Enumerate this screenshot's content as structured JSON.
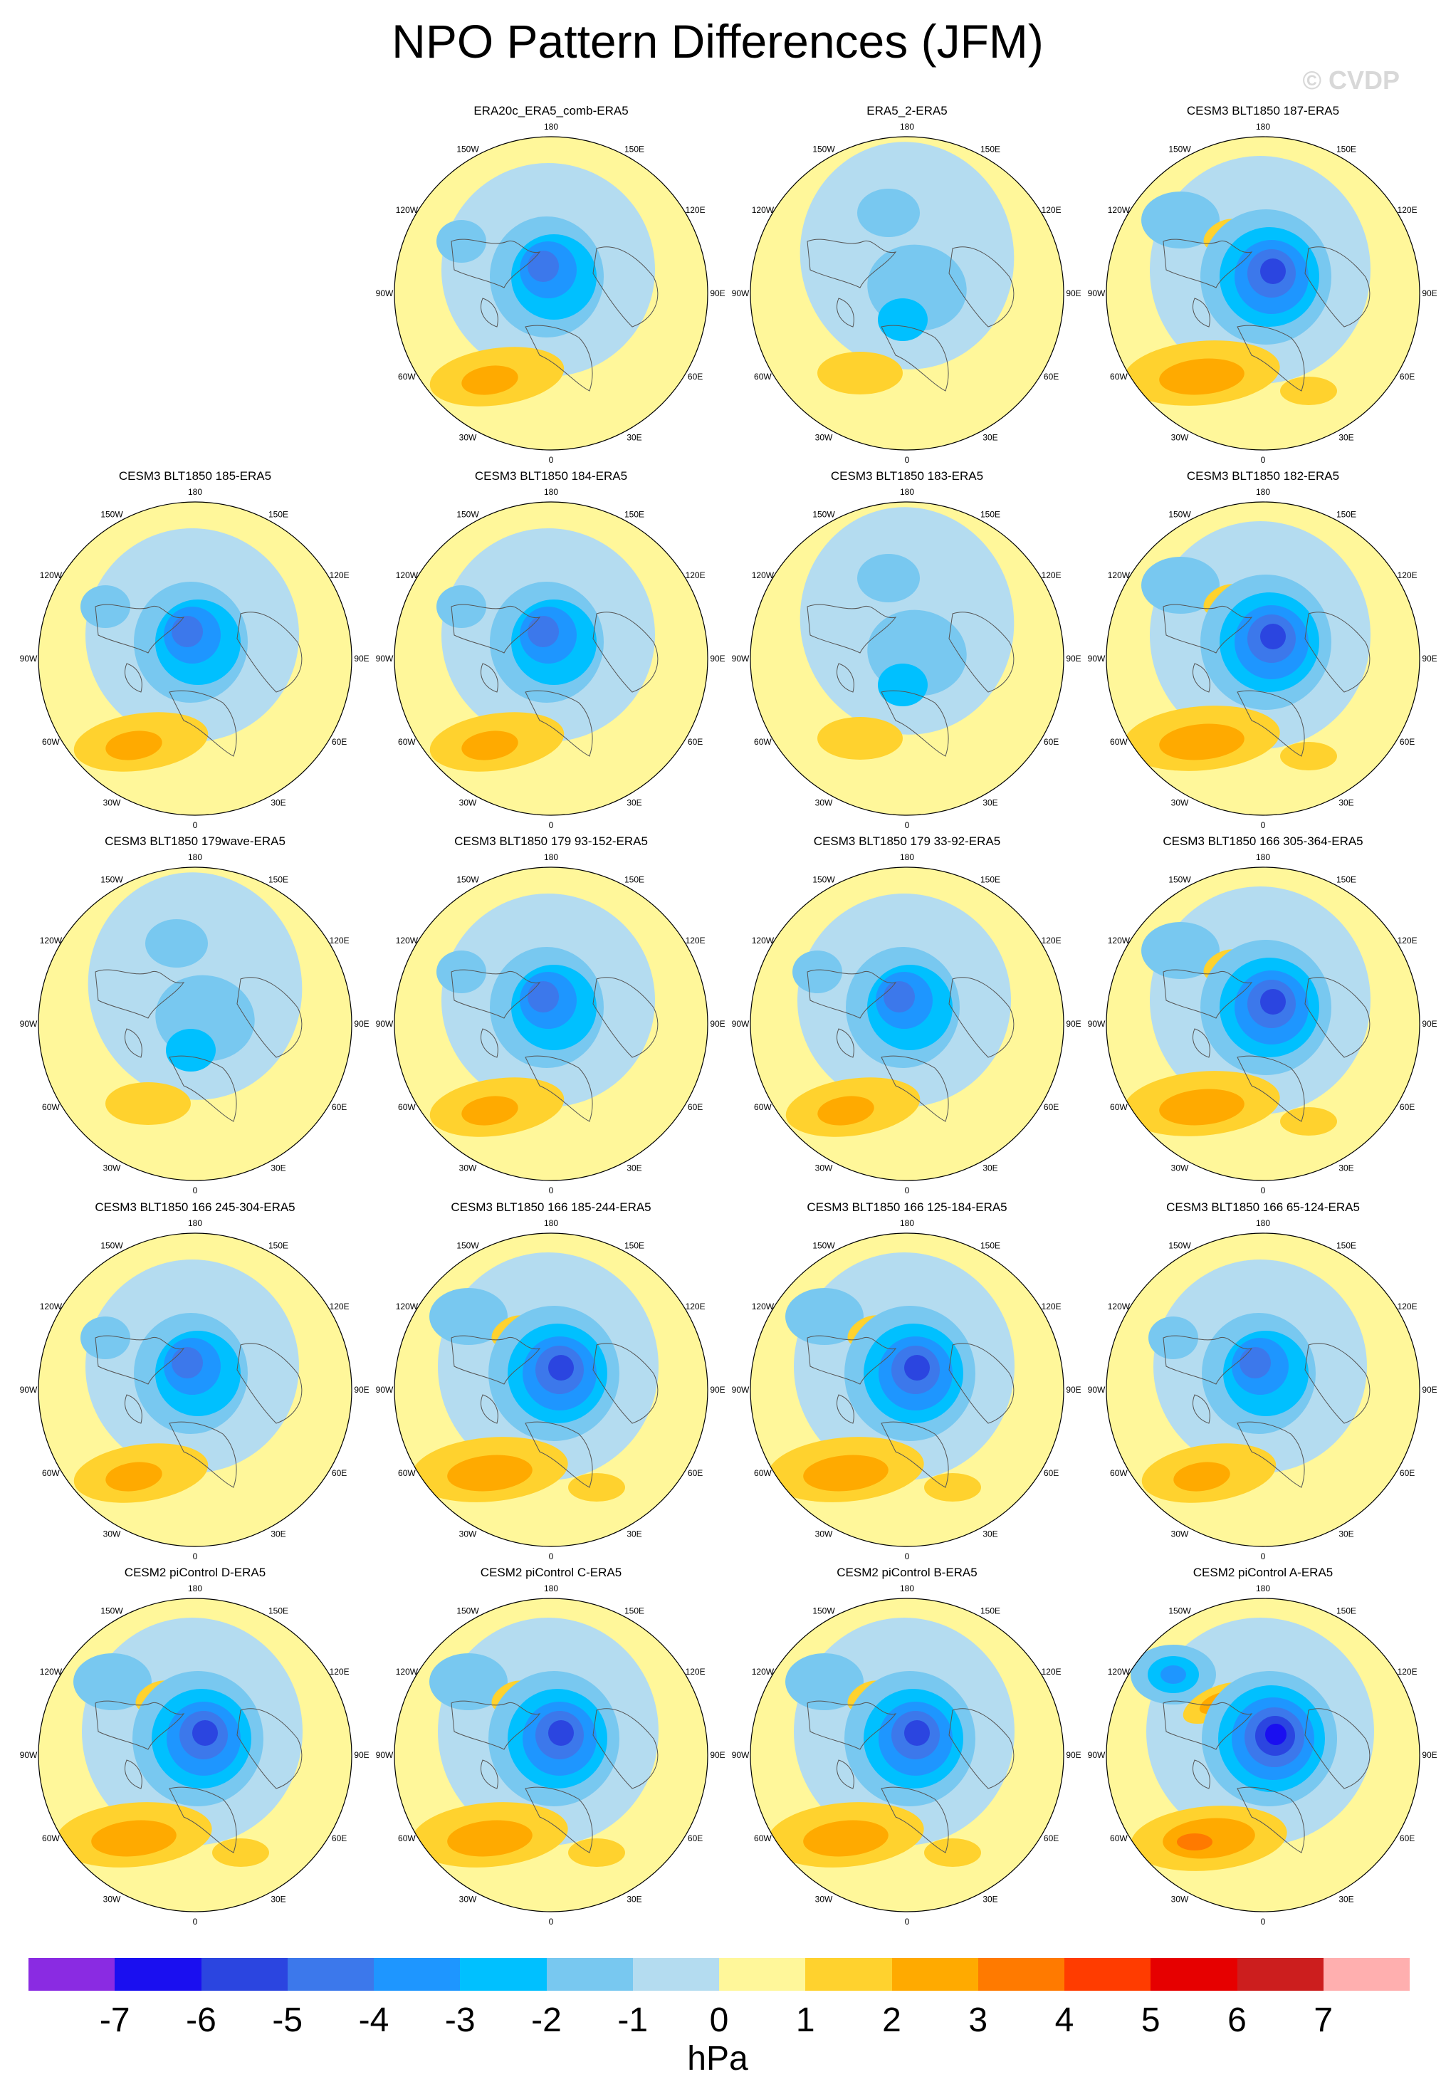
{
  "title": "NPO Pattern Differences (JFM)",
  "copyright": "© CVDP",
  "panels": [
    {
      "title": "ERA20c_ERA5_comb-ERA5",
      "col": 1,
      "row": 0,
      "pattern": 1
    },
    {
      "title": "ERA5_2-ERA5",
      "col": 2,
      "row": 0,
      "pattern": 0
    },
    {
      "title": "CESM3 BLT1850 187-ERA5",
      "col": 3,
      "row": 0,
      "pattern": 2
    },
    {
      "title": "CESM3 BLT1850 185-ERA5",
      "col": 0,
      "row": 1,
      "pattern": 1
    },
    {
      "title": "CESM3 BLT1850 184-ERA5",
      "col": 1,
      "row": 1,
      "pattern": 1
    },
    {
      "title": "CESM3 BLT1850 183-ERA5",
      "col": 2,
      "row": 1,
      "pattern": 0
    },
    {
      "title": "CESM3 BLT1850 182-ERA5",
      "col": 3,
      "row": 1,
      "pattern": 2
    },
    {
      "title": "CESM3 BLT1850 179wave-ERA5",
      "col": 0,
      "row": 2,
      "pattern": 0
    },
    {
      "title": "CESM3 BLT1850 179 93-152-ERA5",
      "col": 1,
      "row": 2,
      "pattern": 1
    },
    {
      "title": "CESM3 BLT1850 179 33-92-ERA5",
      "col": 2,
      "row": 2,
      "pattern": 1
    },
    {
      "title": "CESM3 BLT1850 166 305-364-ERA5",
      "col": 3,
      "row": 2,
      "pattern": 2
    },
    {
      "title": "CESM3 BLT1850 166 245-304-ERA5",
      "col": 0,
      "row": 3,
      "pattern": 1
    },
    {
      "title": "CESM3 BLT1850 166 185-244-ERA5",
      "col": 1,
      "row": 3,
      "pattern": 2
    },
    {
      "title": "CESM3 BLT1850 166 125-184-ERA5",
      "col": 2,
      "row": 3,
      "pattern": 2
    },
    {
      "title": "CESM3 BLT1850 166 65-124-ERA5",
      "col": 3,
      "row": 3,
      "pattern": 1
    },
    {
      "title": "CESM2 piControl D-ERA5",
      "col": 0,
      "row": 4,
      "pattern": 2
    },
    {
      "title": "CESM2 piControl C-ERA5",
      "col": 1,
      "row": 4,
      "pattern": 2
    },
    {
      "title": "CESM2 piControl B-ERA5",
      "col": 2,
      "row": 4,
      "pattern": 2
    },
    {
      "title": "CESM2 piControl A-ERA5",
      "col": 3,
      "row": 4,
      "pattern": 3
    }
  ],
  "lon_labels": [
    "180",
    "150E",
    "120E",
    "90E",
    "60E",
    "30E",
    "0",
    "30W",
    "60W",
    "90W",
    "120W",
    "150W"
  ],
  "colorbar": {
    "colors": [
      "#8a2be2",
      "#1a0ff0",
      "#2b45e0",
      "#3c78eb",
      "#1e96ff",
      "#00c0ff",
      "#78c8f0",
      "#b4dcf0",
      "#fff79a",
      "#ffd22e",
      "#ffaa00",
      "#ff7a00",
      "#ff3c00",
      "#e60000",
      "#cc1e1e",
      "#ffafaf"
    ],
    "ticks": [
      "-7",
      "-6",
      "-5",
      "-4",
      "-3",
      "-2",
      "-1",
      "0",
      "1",
      "2",
      "3",
      "4",
      "5",
      "6",
      "7"
    ],
    "units": "hPa"
  }
}
